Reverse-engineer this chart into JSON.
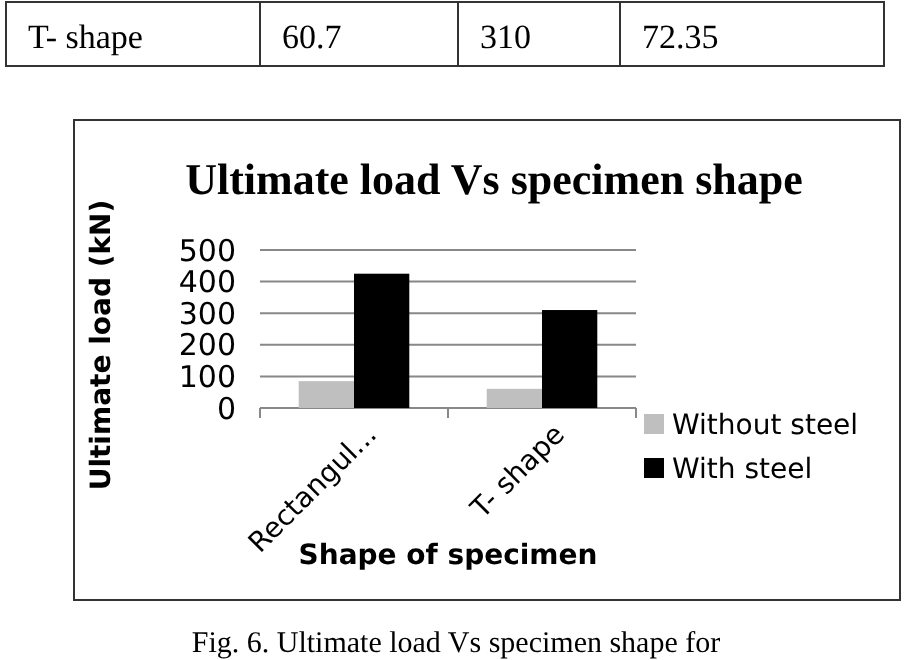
{
  "chart_data": {
    "type": "bar",
    "title": "Ultimate load Vs specimen shape",
    "xlabel": "Shape of specimen",
    "ylabel": "Ultimate load (kN)",
    "categories": [
      "Rectangul...",
      "T- shape"
    ],
    "series": [
      {
        "name": "Without steel",
        "color": "#bfbfbf",
        "values": [
          85,
          60.7
        ]
      },
      {
        "name": "With steel",
        "color": "#000000",
        "values": [
          425,
          310
        ]
      }
    ],
    "ylim": [
      0,
      500
    ],
    "yticks": [
      0,
      100,
      200,
      300,
      400,
      500
    ],
    "grid": "y",
    "legend": "right",
    "annotations": [
      "T- shape",
      "60.7",
      "310",
      "72.35",
      "Fig. 6. Ultimate load Vs specimen shape for"
    ]
  }
}
